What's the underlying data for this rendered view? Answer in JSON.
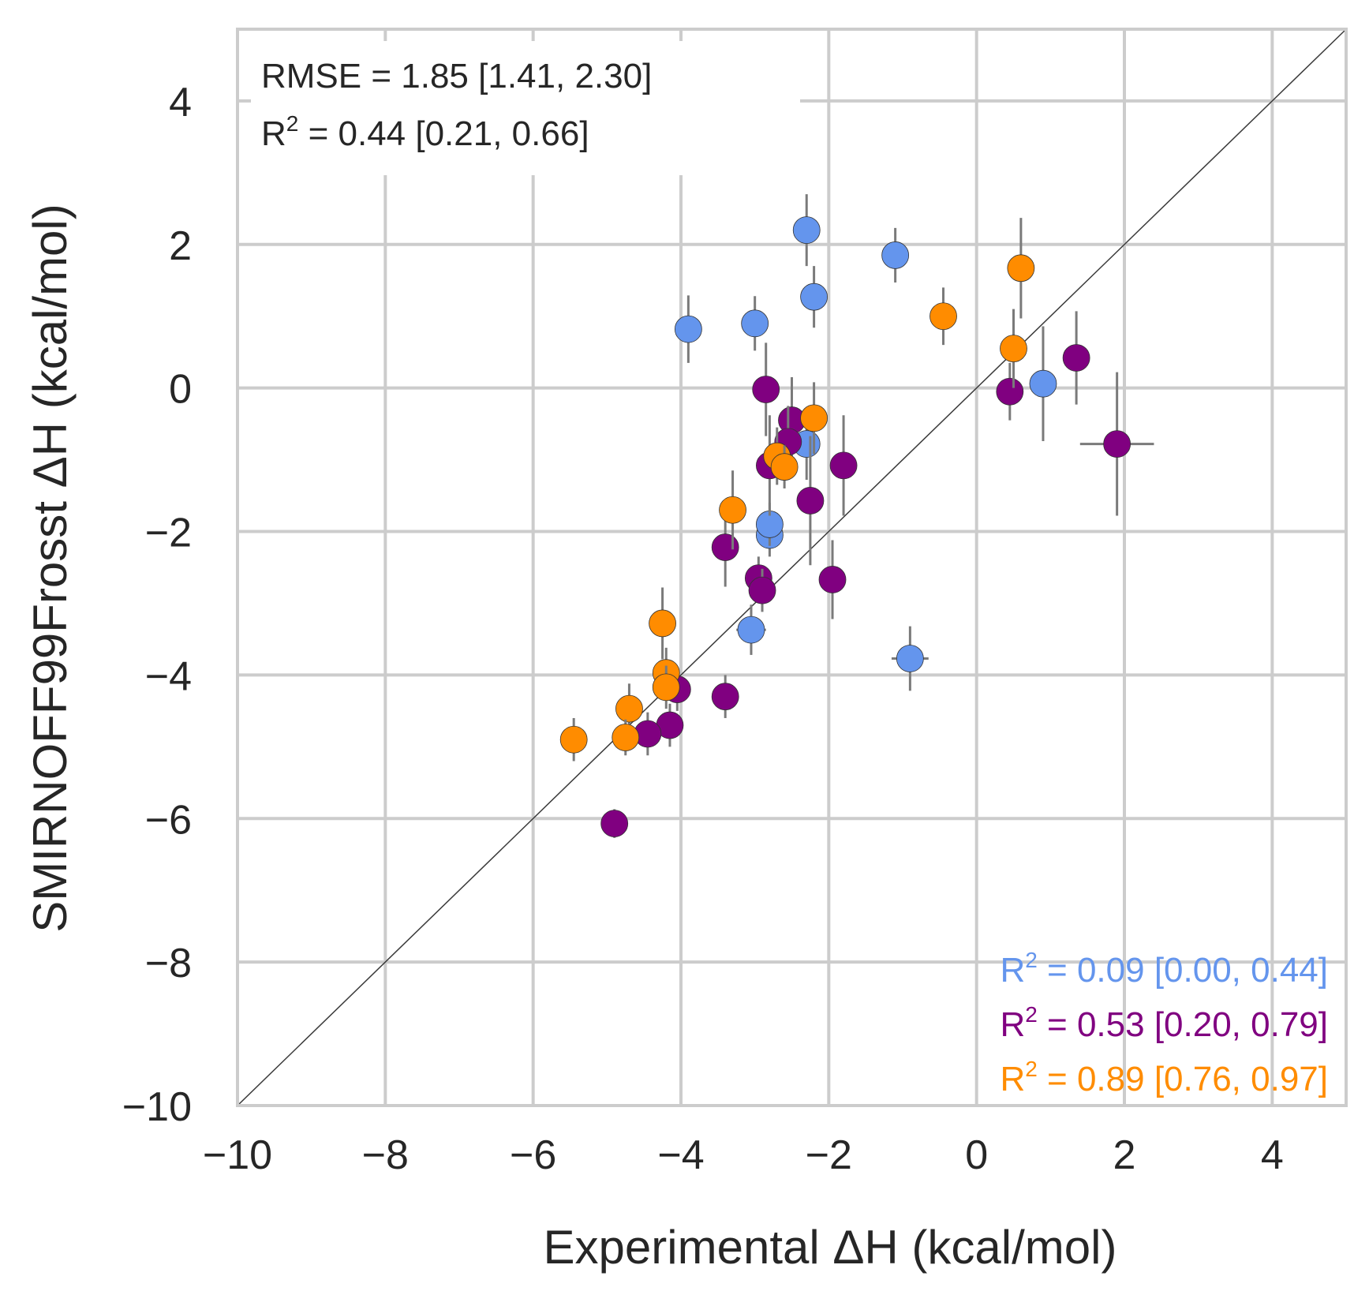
{
  "chart_data": {
    "type": "scatter",
    "title": "",
    "xlabel": "Experimental ΔH (kcal/mol)",
    "ylabel": "SMIRNOFF99Frosst ΔH (kcal/mol)",
    "xlim": [
      -10,
      5
    ],
    "ylim": [
      -10,
      5
    ],
    "xticks": [
      -10,
      -8,
      -6,
      -4,
      -2,
      0,
      2,
      4
    ],
    "yticks": [
      -10,
      -8,
      -6,
      -4,
      -2,
      0,
      2,
      4
    ],
    "xtick_labels": [
      "−10",
      "−8",
      "−6",
      "−4",
      "−2",
      "0",
      "2",
      "4"
    ],
    "ytick_labels": [
      "−10",
      "−8",
      "−6",
      "−4",
      "−2",
      "0",
      "2",
      "4"
    ],
    "grid": true,
    "identity_line": true,
    "stats": {
      "rmse_line": "RMSE = 1.85 [1.41, 2.30]",
      "r2_prefix": "R",
      "r2_sup": "2",
      "r2_rest": " = 0.44 [0.21, 0.66]"
    },
    "series": [
      {
        "color": "#6495ED",
        "r2_label": " = 0.09 [0.00, 0.44]",
        "points": [
          {
            "x": -2.3,
            "y": 2.2,
            "yerr": 0.5,
            "xerr": 0
          },
          {
            "x": -1.1,
            "y": 1.85,
            "yerr": 0.38,
            "xerr": 0
          },
          {
            "x": -2.2,
            "y": 1.27,
            "yerr": 0.43,
            "xerr": 0
          },
          {
            "x": -3.0,
            "y": 0.9,
            "yerr": 0.38,
            "xerr": 0
          },
          {
            "x": -3.9,
            "y": 0.82,
            "yerr": 0.47,
            "xerr": 0
          },
          {
            "x": 0.9,
            "y": 0.06,
            "yerr": 0.8,
            "xerr": 0
          },
          {
            "x": -2.3,
            "y": -0.78,
            "yerr": 0.5,
            "xerr": 0
          },
          {
            "x": -2.8,
            "y": -2.05,
            "yerr": 0.3,
            "xerr": 0
          },
          {
            "x": -2.8,
            "y": -1.9,
            "yerr": 0.3,
            "xerr": 0
          },
          {
            "x": -3.05,
            "y": -3.37,
            "yerr": 0.35,
            "xerr": 0.2
          },
          {
            "x": -0.9,
            "y": -3.77,
            "yerr": 0.45,
            "xerr": 0.25
          }
        ]
      },
      {
        "color": "#800080",
        "r2_label": " = 0.53 [0.20, 0.79]",
        "points": [
          {
            "x": 1.35,
            "y": 0.42,
            "yerr": 0.65,
            "xerr": 0
          },
          {
            "x": 0.45,
            "y": -0.05,
            "yerr": 0.4,
            "xerr": 0
          },
          {
            "x": 1.9,
            "y": -0.78,
            "yerr": 1.0,
            "xerr": 0.5
          },
          {
            "x": -2.85,
            "y": -0.02,
            "yerr": 0.65,
            "xerr": 0
          },
          {
            "x": -2.5,
            "y": -0.45,
            "yerr": 0.6,
            "xerr": 0
          },
          {
            "x": -2.55,
            "y": -0.75,
            "yerr": 0.5,
            "xerr": 0
          },
          {
            "x": -2.8,
            "y": -1.08,
            "yerr": 0.7,
            "xerr": 0
          },
          {
            "x": -1.8,
            "y": -1.08,
            "yerr": 0.7,
            "xerr": 0
          },
          {
            "x": -2.25,
            "y": -1.57,
            "yerr": 0.9,
            "xerr": 0
          },
          {
            "x": -3.4,
            "y": -2.22,
            "yerr": 0.55,
            "xerr": 0
          },
          {
            "x": -2.95,
            "y": -2.65,
            "yerr": 0.3,
            "xerr": 0
          },
          {
            "x": -1.95,
            "y": -2.67,
            "yerr": 0.55,
            "xerr": 0
          },
          {
            "x": -2.9,
            "y": -2.82,
            "yerr": 0.3,
            "xerr": 0
          },
          {
            "x": -4.05,
            "y": -4.2,
            "yerr": 0.3,
            "xerr": 0
          },
          {
            "x": -3.4,
            "y": -4.3,
            "yerr": 0.3,
            "xerr": 0
          },
          {
            "x": -4.15,
            "y": -4.7,
            "yerr": 0.3,
            "xerr": 0
          },
          {
            "x": -4.45,
            "y": -4.82,
            "yerr": 0.3,
            "xerr": 0
          },
          {
            "x": -4.9,
            "y": -6.07,
            "yerr": 0.2,
            "xerr": 0
          }
        ]
      },
      {
        "color": "#FF8C00",
        "r2_label": " = 0.89 [0.76, 0.97]",
        "points": [
          {
            "x": 0.6,
            "y": 1.67,
            "yerr": 0.7,
            "xerr": 0
          },
          {
            "x": -0.45,
            "y": 1.0,
            "yerr": 0.4,
            "xerr": 0
          },
          {
            "x": 0.5,
            "y": 0.55,
            "yerr": 0.55,
            "xerr": 0
          },
          {
            "x": -2.2,
            "y": -0.42,
            "yerr": 0.5,
            "xerr": 0
          },
          {
            "x": -2.7,
            "y": -0.95,
            "yerr": 0.4,
            "xerr": 0
          },
          {
            "x": -2.6,
            "y": -1.1,
            "yerr": 0.3,
            "xerr": 0
          },
          {
            "x": -3.3,
            "y": -1.7,
            "yerr": 0.55,
            "xerr": 0
          },
          {
            "x": -4.25,
            "y": -3.28,
            "yerr": 0.5,
            "xerr": 0
          },
          {
            "x": -4.2,
            "y": -3.97,
            "yerr": 0.35,
            "xerr": 0
          },
          {
            "x": -4.2,
            "y": -4.17,
            "yerr": 0.3,
            "xerr": 0
          },
          {
            "x": -4.7,
            "y": -4.47,
            "yerr": 0.35,
            "xerr": 0
          },
          {
            "x": -4.75,
            "y": -4.87,
            "yerr": 0.25,
            "xerr": 0
          },
          {
            "x": -5.45,
            "y": -4.9,
            "yerr": 0.3,
            "xerr": 0
          }
        ]
      }
    ]
  }
}
